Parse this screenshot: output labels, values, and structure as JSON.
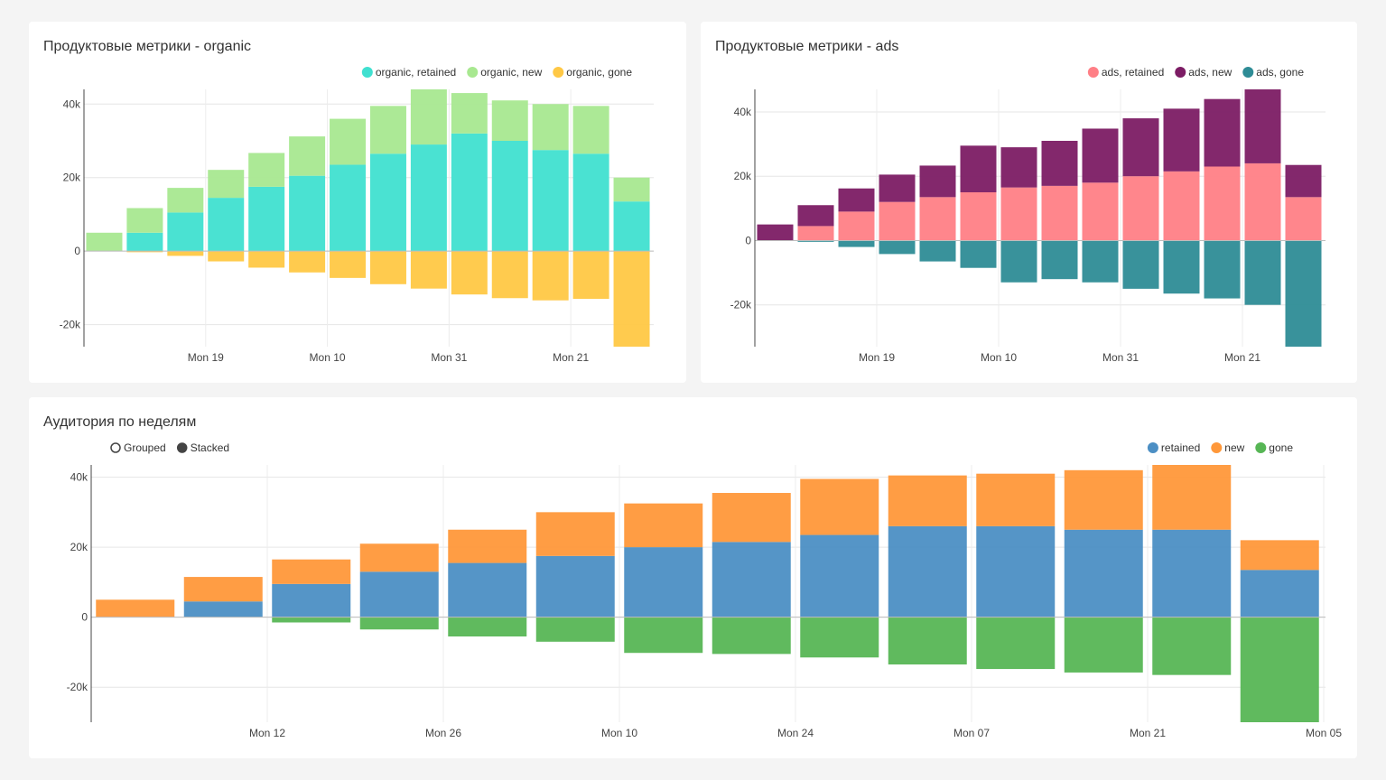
{
  "dashboard": {
    "organic_title": "Продуктовые метрики - organic",
    "ads_title": "Продуктовые метрики - ads",
    "audience_title": "Аудитория по неделям"
  },
  "audience_controls": {
    "options": [
      {
        "label": "Grouped",
        "selected": false
      },
      {
        "label": "Stacked",
        "selected": true
      }
    ]
  },
  "chart_data": [
    {
      "type": "bar",
      "mode": "relative",
      "title": "Продуктовые метрики - organic",
      "yticks": [
        {
          "value": 40000,
          "label": "40k"
        },
        {
          "value": 20000,
          "label": "20k"
        },
        {
          "value": 0,
          "label": "0"
        },
        {
          "value": -20000,
          "label": "-20k"
        }
      ],
      "ylim": [
        -26000,
        44000
      ],
      "x_ticks": [
        {
          "index": 2.5,
          "label": "Mon 19"
        },
        {
          "index": 5.5,
          "label": "Mon 10"
        },
        {
          "index": 8.5,
          "label": "Mon 31"
        },
        {
          "index": 11.5,
          "label": "Mon 21"
        }
      ],
      "grid": true,
      "legend_position": "top-right",
      "series": [
        {
          "name": "organic, retained",
          "color": "#40e0d0",
          "values": [
            0,
            5000,
            10500,
            14500,
            17500,
            20500,
            23500,
            26500,
            29000,
            32000,
            30000,
            27500,
            26500,
            13500
          ]
        },
        {
          "name": "organic, new",
          "color": "#a8e890",
          "values": [
            5000,
            6700,
            6700,
            7600,
            9200,
            10700,
            12500,
            13000,
            15000,
            11000,
            11000,
            12500,
            13000,
            6500
          ]
        },
        {
          "name": "organic, gone",
          "color": "#ffc845",
          "values": [
            0,
            -300,
            -1300,
            -2800,
            -4500,
            -5800,
            -7300,
            -9000,
            -10200,
            -11800,
            -12800,
            -13400,
            -13000,
            -26000
          ]
        }
      ]
    },
    {
      "type": "bar",
      "mode": "relative",
      "title": "Продуктовые метрики - ads",
      "yticks": [
        {
          "value": 40000,
          "label": "40k"
        },
        {
          "value": 20000,
          "label": "20k"
        },
        {
          "value": 0,
          "label": "0"
        },
        {
          "value": -20000,
          "label": "-20k"
        }
      ],
      "ylim": [
        -33000,
        47000
      ],
      "x_ticks": [
        {
          "index": 2.5,
          "label": "Mon 19"
        },
        {
          "index": 5.5,
          "label": "Mon 10"
        },
        {
          "index": 8.5,
          "label": "Mon 31"
        },
        {
          "index": 11.5,
          "label": "Mon 21"
        }
      ],
      "grid": true,
      "legend_position": "top-right",
      "series": [
        {
          "name": "ads, retained",
          "color": "#ff7f86",
          "values": [
            0,
            4500,
            9000,
            12000,
            13500,
            15000,
            16500,
            17000,
            18000,
            20000,
            21500,
            23000,
            24000,
            13500
          ]
        },
        {
          "name": "ads, new",
          "color": "#7c1c64",
          "values": [
            5000,
            6500,
            7200,
            8500,
            9800,
            14500,
            12500,
            14000,
            16800,
            18000,
            19500,
            21000,
            23000,
            10000
          ]
        },
        {
          "name": "ads, gone",
          "color": "#2e8c96",
          "values": [
            0,
            -400,
            -2000,
            -4200,
            -6500,
            -8500,
            -13000,
            -12000,
            -13000,
            -15000,
            -16500,
            -18000,
            -20000,
            -33000
          ]
        }
      ]
    },
    {
      "type": "bar",
      "mode": "stacked",
      "title": "Аудитория по неделям",
      "yticks": [
        {
          "value": 40000,
          "label": "40k"
        },
        {
          "value": 20000,
          "label": "20k"
        },
        {
          "value": 0,
          "label": "0"
        },
        {
          "value": -20000,
          "label": "-20k"
        }
      ],
      "ylim": [
        -30000,
        43500
      ],
      "x_ticks": [
        {
          "index": 1.5,
          "label": "Mon 12"
        },
        {
          "index": 3.5,
          "label": "Mon 26"
        },
        {
          "index": 5.5,
          "label": "Mon 10"
        },
        {
          "index": 7.5,
          "label": "Mon 24"
        },
        {
          "index": 9.5,
          "label": "Mon 07"
        },
        {
          "index": 11.5,
          "label": "Mon 21"
        },
        {
          "index": 13.5,
          "label": "Mon 05"
        }
      ],
      "grid": true,
      "legend_position": "top-right",
      "series": [
        {
          "name": "retained",
          "color": "#4c8fc4",
          "values": [
            0,
            4500,
            9500,
            13000,
            15500,
            17500,
            20000,
            21500,
            23500,
            26000,
            26000,
            25000,
            25000,
            13500
          ]
        },
        {
          "name": "new",
          "color": "#ff983a",
          "values": [
            5000,
            7000,
            7000,
            8000,
            9500,
            12500,
            12500,
            14000,
            16000,
            14500,
            15000,
            17000,
            18500,
            8500
          ]
        },
        {
          "name": "gone",
          "color": "#57b655",
          "values": [
            0,
            0,
            -1500,
            -3500,
            -5500,
            -7000,
            -10200,
            -10500,
            -11500,
            -13500,
            -14800,
            -15800,
            -16500,
            -30000
          ]
        }
      ]
    }
  ]
}
